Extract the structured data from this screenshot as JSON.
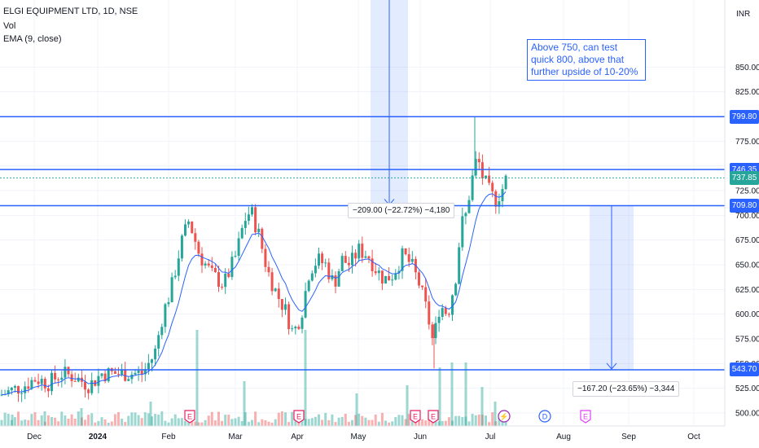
{
  "header": {
    "symbol": "ELGI EQUIPMENT LTD, 1D, NSE",
    "vol": "Vol",
    "ema": "EMA (9, close)"
  },
  "currency": "INR",
  "annotation": "Above 750, can test quick 800, above that  further upside of 10-20%",
  "measure_1": "−209.00 (−22.72%) −4,180",
  "measure_2": "−167.20 (−23.65%) −3,344",
  "price_labels": [
    {
      "text": "799.80",
      "color": "#2962ff"
    },
    {
      "text": "746.35",
      "color": "#2962ff"
    },
    {
      "text": "737.85",
      "color": "#26a69a"
    },
    {
      "text": "709.80",
      "color": "#2962ff"
    },
    {
      "text": "543.70",
      "color": "#2962ff"
    }
  ],
  "events": [
    {
      "label": "E",
      "color": "#e91e63",
      "month": "Feb"
    },
    {
      "label": "E",
      "color": "#e91e63",
      "month": "Apr"
    },
    {
      "label": "E",
      "color": "#e91e63",
      "month": "May"
    },
    {
      "label": "E",
      "color": "#e91e63",
      "month": "Jun"
    },
    {
      "label": "⚡",
      "color": "#9c27b0",
      "month": "Jul"
    },
    {
      "label": "D",
      "color": "#2962ff",
      "month": "Jul"
    },
    {
      "label": "E",
      "color": "#e040fb",
      "month": "Aug"
    }
  ],
  "chart_data": {
    "type": "candlestick",
    "title": "ELGI EQUIPMENT LTD, 1D, NSE",
    "ylim": [
      490,
      870
    ],
    "y_ticks": [
      500,
      525,
      550,
      575,
      600,
      625,
      650,
      675,
      700,
      725,
      750,
      775,
      800,
      825,
      850
    ],
    "x_ticks": [
      "Dec",
      "2024",
      "Feb",
      "Mar",
      "Apr",
      "May",
      "Jun",
      "Jul",
      "Aug",
      "Sep",
      "Oct"
    ],
    "horizontal_levels": [
      799.8,
      746.35,
      709.8,
      543.7
    ],
    "last_price": 737.85,
    "colors": {
      "up": "#26a69a",
      "down": "#ef5350",
      "ema": "#2962ff",
      "level": "#2962ff"
    },
    "close_path": [
      [
        0,
        518
      ],
      [
        30,
        528
      ],
      [
        44,
        535
      ],
      [
        60,
        530
      ],
      [
        75,
        540
      ],
      [
        90,
        537
      ],
      [
        110,
        528
      ],
      [
        125,
        540
      ],
      [
        150,
        540
      ],
      [
        175,
        540
      ],
      [
        190,
        560
      ],
      [
        200,
        600
      ],
      [
        210,
        625
      ],
      [
        222,
        670
      ],
      [
        232,
        695
      ],
      [
        245,
        660
      ],
      [
        260,
        640
      ],
      [
        275,
        630
      ],
      [
        290,
        660
      ],
      [
        300,
        695
      ],
      [
        308,
        705
      ],
      [
        318,
        680
      ],
      [
        328,
        645
      ],
      [
        340,
        620
      ],
      [
        350,
        605
      ],
      [
        360,
        580
      ],
      [
        370,
        600
      ],
      [
        380,
        645
      ],
      [
        390,
        655
      ],
      [
        400,
        650
      ],
      [
        410,
        630
      ],
      [
        420,
        655
      ],
      [
        430,
        650
      ],
      [
        440,
        665
      ],
      [
        452,
        660
      ],
      [
        462,
        645
      ],
      [
        472,
        635
      ],
      [
        482,
        640
      ],
      [
        495,
        660
      ],
      [
        505,
        650
      ],
      [
        515,
        630
      ],
      [
        525,
        600
      ],
      [
        532,
        570
      ],
      [
        540,
        610
      ],
      [
        550,
        600
      ],
      [
        560,
        640
      ],
      [
        566,
        690
      ],
      [
        572,
        700
      ],
      [
        578,
        730
      ],
      [
        586,
        760
      ],
      [
        592,
        740
      ],
      [
        600,
        725
      ],
      [
        608,
        715
      ],
      [
        616,
        725
      ],
      [
        622,
        737.85
      ]
    ],
    "volume_last": [
      [
        15,
        14
      ],
      [
        55,
        18
      ],
      [
        100,
        22
      ],
      [
        185,
        30
      ],
      [
        242,
        118
      ],
      [
        300,
        55
      ],
      [
        375,
        118
      ],
      [
        438,
        40
      ],
      [
        500,
        50
      ],
      [
        540,
        72
      ],
      [
        555,
        78
      ],
      [
        572,
        78
      ],
      [
        592,
        48
      ],
      [
        608,
        30
      ]
    ]
  }
}
